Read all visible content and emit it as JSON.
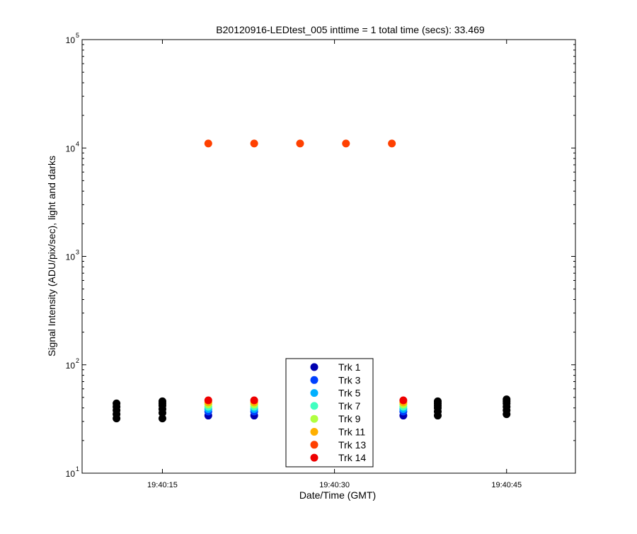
{
  "chart_data": {
    "type": "scatter",
    "title": "B20120916-LEDtest_005 inttime = 1 total time (secs): 33.469",
    "xlabel": "Date/Time (GMT)",
    "ylabel": "Signal Intensity (ADU/pix/sec), light and darks",
    "y_scale": "log",
    "ylim": [
      10,
      100000
    ],
    "xlim": [
      "19:40:08",
      "19:40:51"
    ],
    "x_ticks": [
      "19:40:15",
      "19:40:30",
      "19:40:45"
    ],
    "y_ticks": [
      {
        "value": 10,
        "base": "10",
        "exp": "1"
      },
      {
        "value": 100,
        "base": "10",
        "exp": "2"
      },
      {
        "value": 1000,
        "base": "10",
        "exp": "3"
      },
      {
        "value": 10000,
        "base": "10",
        "exp": "4"
      },
      {
        "value": 100000,
        "base": "10",
        "exp": "5"
      }
    ],
    "grid": false,
    "legend_position": "bottom-center",
    "darks": {
      "color": "#000000",
      "x": [
        "19:40:11",
        "19:40:15",
        "19:40:39",
        "19:40:45"
      ],
      "values": [
        [
          32,
          35,
          38,
          41,
          44
        ],
        [
          32,
          36,
          39,
          42,
          44,
          46
        ],
        [
          34,
          37,
          40,
          42,
          44,
          46
        ],
        [
          35,
          38,
          41,
          44,
          46,
          48
        ]
      ]
    },
    "series": [
      {
        "name": "Trk 1",
        "color": "#0000b0",
        "x": [
          "19:40:19",
          "19:40:23",
          "19:40:36"
        ],
        "values": [
          34,
          34,
          34
        ]
      },
      {
        "name": "Trk 3",
        "color": "#0040ff",
        "x": [
          "19:40:19",
          "19:40:23",
          "19:40:36"
        ],
        "values": [
          37,
          37,
          37
        ]
      },
      {
        "name": "Trk 5",
        "color": "#00b0ff",
        "x": [
          "19:40:19",
          "19:40:23",
          "19:40:36"
        ],
        "values": [
          39,
          39,
          39
        ]
      },
      {
        "name": "Trk 7",
        "color": "#40ffc0",
        "x": [
          "19:40:19",
          "19:40:23",
          "19:40:36"
        ],
        "values": [
          41,
          41,
          41
        ]
      },
      {
        "name": "Trk 9",
        "color": "#b0ff40",
        "x": [
          "19:40:19",
          "19:40:23",
          "19:40:36"
        ],
        "values": [
          43,
          43,
          43
        ]
      },
      {
        "name": "Trk 11",
        "color": "#ffb000",
        "x": [
          "19:40:19",
          "19:40:23",
          "19:40:36"
        ],
        "values": [
          45,
          45,
          45
        ]
      },
      {
        "name": "Trk 13",
        "color": "#ff4000",
        "x": [
          "19:40:19",
          "19:40:23",
          "19:40:27",
          "19:40:31",
          "19:40:35"
        ],
        "values": [
          11000,
          11000,
          11000,
          11000,
          11000
        ]
      },
      {
        "name": "Trk 14",
        "color": "#ee0000",
        "x": [
          "19:40:19",
          "19:40:23",
          "19:40:36"
        ],
        "values": [
          47,
          47,
          47
        ]
      }
    ]
  }
}
